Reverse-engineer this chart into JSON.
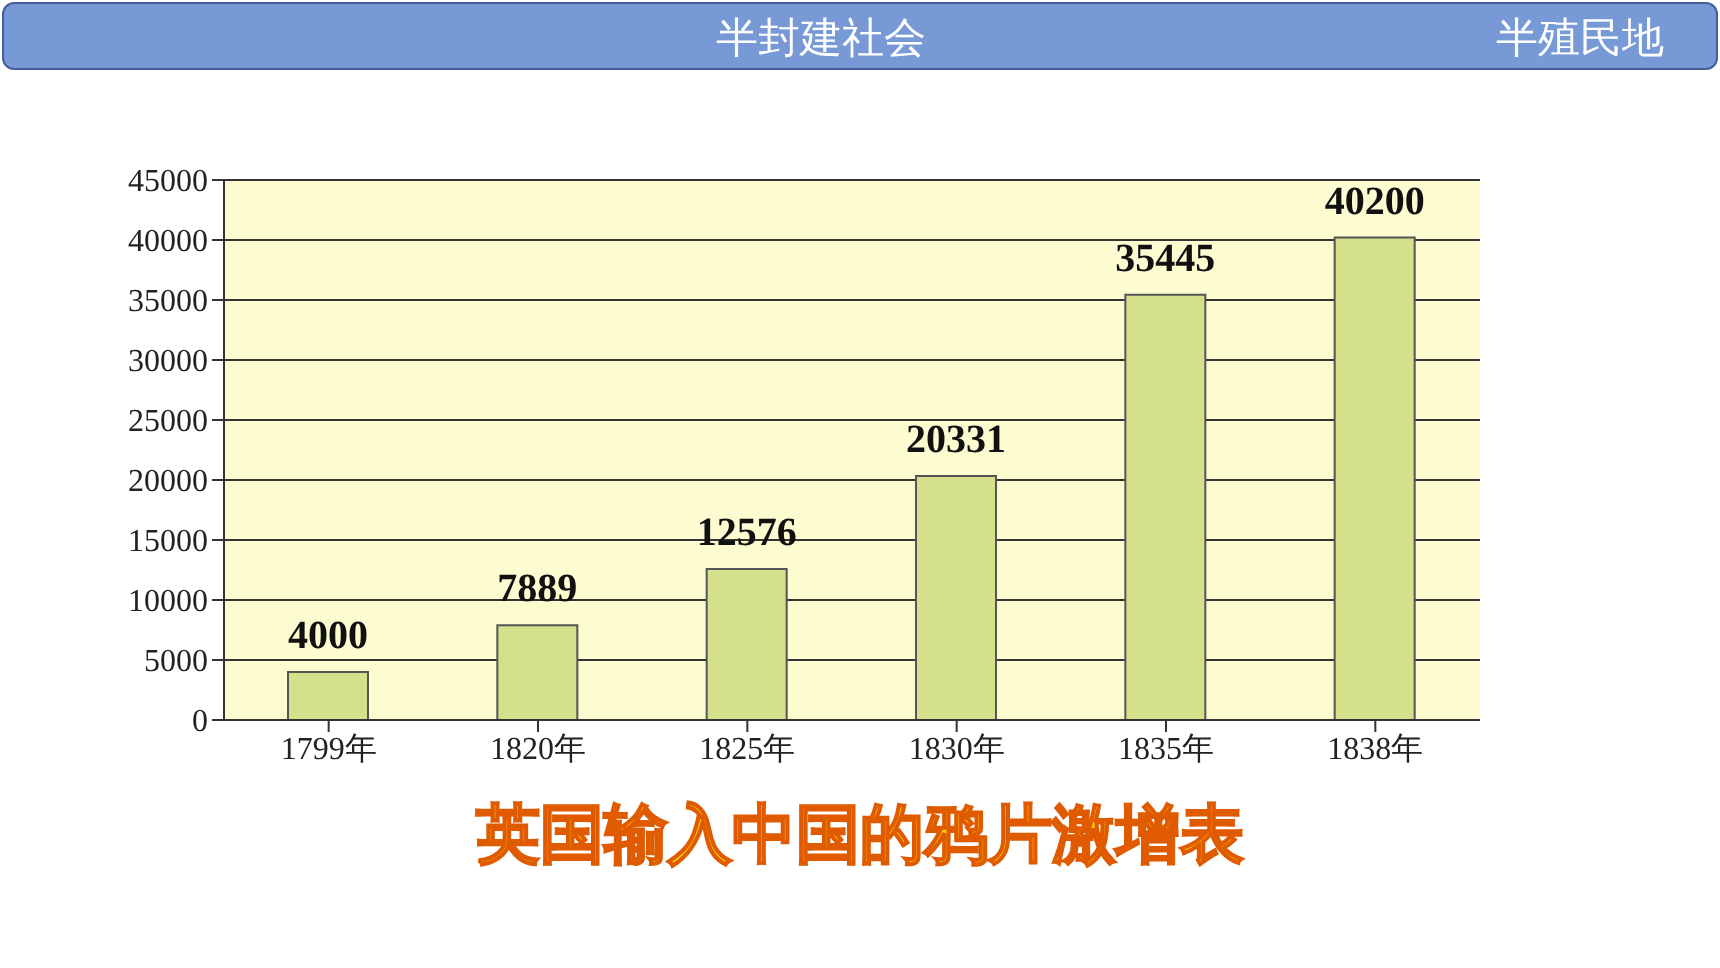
{
  "chart_data": {
    "type": "bar",
    "title": "英国输入中国的鸦片激增表",
    "annotations": [
      "半殖民地",
      "半封建社会"
    ],
    "categories": [
      "1799年",
      "1820年",
      "1825年",
      "1830年",
      "1835年",
      "1838年"
    ],
    "values": [
      4000,
      7889,
      12576,
      20331,
      35445,
      40200
    ],
    "color": "#d4e08a",
    "ylim": [
      0,
      45000
    ],
    "yticks": [
      0,
      5000,
      10000,
      15000,
      20000,
      25000,
      30000,
      35000,
      40000,
      45000
    ],
    "grid": "y",
    "data_labels": true
  }
}
